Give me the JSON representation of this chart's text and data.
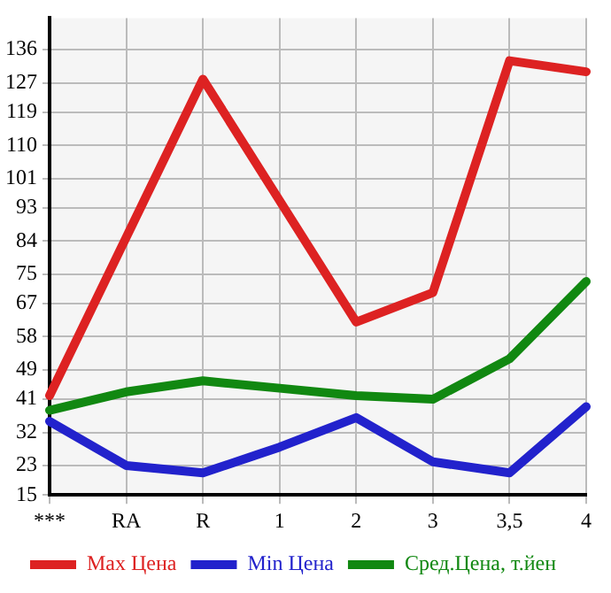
{
  "chart_data": {
    "type": "line",
    "categories": [
      "***",
      "RA",
      "R",
      "1",
      "2",
      "3",
      "3,5",
      "4"
    ],
    "ylim": [
      15,
      144.6
    ],
    "yticks": [
      15,
      23,
      32,
      41,
      49,
      58,
      67,
      75,
      84,
      93,
      101,
      110,
      119,
      127,
      136
    ],
    "grid": true,
    "legend": "bottom",
    "marker": "none",
    "line_style": "solid",
    "series": [
      {
        "name": "Max Цена",
        "color": "#dd2222",
        "values": [
          42,
          85,
          128,
          95,
          62,
          70,
          133,
          130
        ]
      },
      {
        "name": "Min Цена",
        "color": "#2222cc",
        "values": [
          35,
          23,
          21,
          28,
          36,
          24,
          21,
          39
        ]
      },
      {
        "name": "Сред.Цена, т.йен",
        "color": "#118811",
        "values": [
          38,
          43,
          46,
          44,
          42,
          41,
          52,
          73
        ]
      }
    ]
  }
}
